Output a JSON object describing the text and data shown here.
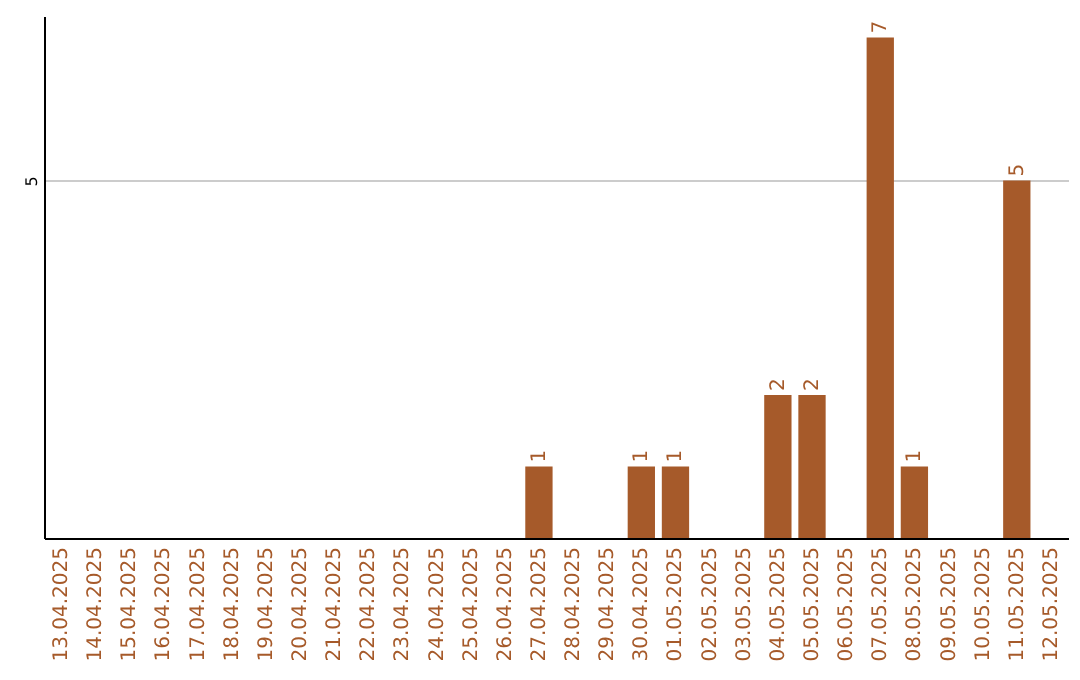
{
  "chart_data": {
    "type": "bar",
    "categories": [
      "13.04.2025",
      "14.04.2025",
      "15.04.2025",
      "16.04.2025",
      "17.04.2025",
      "18.04.2025",
      "19.04.2025",
      "20.04.2025",
      "21.04.2025",
      "22.04.2025",
      "23.04.2025",
      "24.04.2025",
      "25.04.2025",
      "26.04.2025",
      "27.04.2025",
      "28.04.2025",
      "29.04.2025",
      "30.04.2025",
      "01.05.2025",
      "02.05.2025",
      "03.05.2025",
      "04.05.2025",
      "05.05.2025",
      "06.05.2025",
      "07.05.2025",
      "08.05.2025",
      "09.05.2025",
      "10.05.2025",
      "11.05.2025",
      "12.05.2025"
    ],
    "values": [
      null,
      null,
      null,
      null,
      null,
      null,
      null,
      null,
      null,
      null,
      null,
      null,
      null,
      null,
      1,
      null,
      null,
      1,
      1,
      null,
      null,
      2,
      2,
      null,
      7,
      1,
      null,
      null,
      5,
      null
    ],
    "value_labels": [
      null,
      null,
      null,
      null,
      null,
      null,
      null,
      null,
      null,
      null,
      null,
      null,
      null,
      null,
      "1",
      null,
      null,
      "1",
      "1",
      null,
      null,
      "2",
      "2",
      null,
      "7",
      "1",
      null,
      null,
      "5",
      null
    ],
    "color": "#a65a2a",
    "ylim": [
      0,
      7.3
    ],
    "yticks": [
      5
    ],
    "grid": "y"
  }
}
